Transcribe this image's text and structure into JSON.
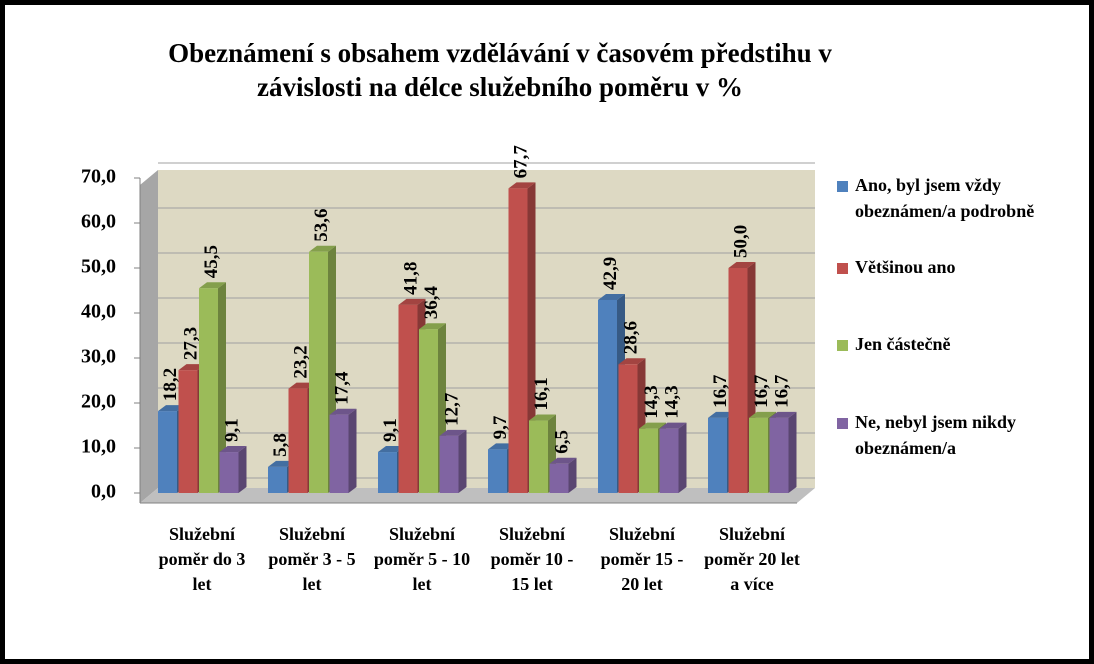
{
  "chart_data": {
    "type": "bar",
    "title": "Obeznámení s obsahem vzdělávání v časovém předstihu v závislosti na délce služebního poměru v %",
    "categories": [
      "Služební poměr do 3 let",
      "Služební poměr 3 - 5 let",
      "Služební poměr 5 - 10 let",
      "Služební poměr 10 - 15 let",
      "Služební poměr 15 - 20 let",
      "Služební poměr 20 let a více"
    ],
    "series": [
      {
        "name": "Ano, byl jsem vždy obeznámen/a podrobně",
        "color": "#4f81bd",
        "values": [
          18.2,
          5.8,
          9.1,
          9.7,
          42.9,
          16.7
        ],
        "value_labels": [
          "18,2",
          "5,8",
          "9,1",
          "9,7",
          "42,9",
          "16,7"
        ]
      },
      {
        "name": "Většinou ano",
        "color": "#c0504d",
        "values": [
          27.3,
          23.2,
          41.8,
          67.7,
          28.6,
          50.0
        ],
        "value_labels": [
          "27,3",
          "23,2",
          "41,8",
          "67,7",
          "28,6",
          "50,0"
        ]
      },
      {
        "name": "Jen částečně",
        "color": "#9bbb59",
        "values": [
          45.5,
          53.6,
          36.4,
          16.1,
          14.3,
          16.7
        ],
        "value_labels": [
          "45,5",
          "53,6",
          "36,4",
          "16,1",
          "14,3",
          "16,7"
        ]
      },
      {
        "name": "Ne, nebyl jsem nikdy obeznámen/a",
        "color": "#8064a2",
        "values": [
          9.1,
          17.4,
          12.7,
          6.5,
          14.3,
          16.7
        ],
        "value_labels": [
          "9,1",
          "17,4",
          "12,7",
          "6,5",
          "14,3",
          "16,7"
        ]
      }
    ],
    "ylim": [
      0,
      70
    ],
    "yticks": [
      {
        "value": 0,
        "label": "0,0"
      },
      {
        "value": 10,
        "label": "10,0"
      },
      {
        "value": 20,
        "label": "20,0"
      },
      {
        "value": 30,
        "label": "30,0"
      },
      {
        "value": 40,
        "label": "40,0"
      },
      {
        "value": 50,
        "label": "50,0"
      },
      {
        "value": 60,
        "label": "60,0"
      },
      {
        "value": 70,
        "label": "70,0"
      }
    ],
    "grid": true,
    "legend": "right"
  }
}
